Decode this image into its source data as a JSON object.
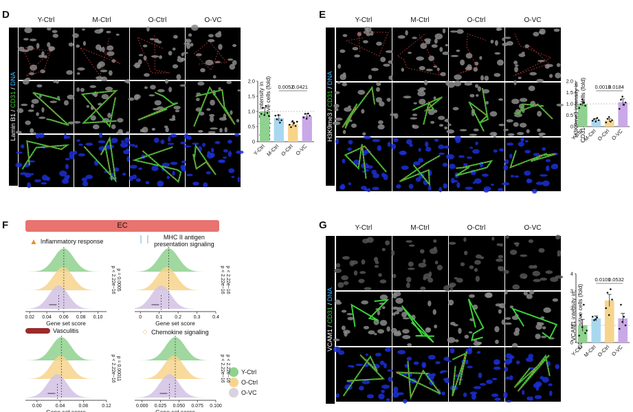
{
  "panels": {
    "D": {
      "letter": "D",
      "cols": [
        "Y-Ctrl",
        "M-Ctrl",
        "O-Ctrl",
        "O-VC"
      ],
      "row_label": {
        "a": "Lamin B1",
        "b": " / ",
        "c": "CD31",
        "d": " / ",
        "e": "DNA"
      },
      "ylabel_1": "Lamin B1 intensity in",
      "ylabel_2": "CD31-positive cells (fold)",
      "pvals": [
        "0.0052",
        "0.0421"
      ],
      "ticks": [
        "0",
        "0.5",
        "1.0",
        "1.5",
        "2.0"
      ],
      "cats": [
        "Y-Ctrl",
        "M-Ctrl",
        "O-Ctrl",
        "O-VC"
      ]
    },
    "E": {
      "letter": "E",
      "cols": [
        "Y-Ctrl",
        "M-Ctrl",
        "O-Ctrl",
        "O-VC"
      ],
      "row_label": {
        "a": "H3K9me3",
        "b": " / ",
        "c": "CD31",
        "d": " / ",
        "e": "DNA"
      },
      "ylabel_1": "H3K9me3 intensity in",
      "ylabel_2": "CD31-positive cells (fold)",
      "pvals": [
        "0.0013",
        "0.0184"
      ],
      "ticks": [
        "0",
        "0.5",
        "1.0",
        "1.5",
        "2.0"
      ],
      "cats": [
        "Y-Ctrl",
        "M-Ctrl",
        "O-Ctrl",
        "O-VC"
      ]
    },
    "F": {
      "letter": "F",
      "banner": "EC",
      "titles": [
        "Inflammatory response",
        "MHC II antigen",
        "presentation signaling",
        "Vasculitis",
        "Chemokine signaling"
      ],
      "pvals": [
        "p < 2.22e−16",
        "p = 0.0005",
        "p < 2.22e−16",
        "p < 2.22e−16",
        "p < 2.22e−16",
        "p = 0.00011",
        "p < 2.22e−16",
        "p < 2.22e−16"
      ],
      "xlabel": "Gene set score",
      "ticks1": [
        "0.02",
        "0.04",
        "0.06",
        "0.08",
        "0.10"
      ],
      "ticks2": [
        "0",
        "0.1",
        "0.2",
        "0.3",
        "0.4"
      ],
      "ticks3": [
        "0.00",
        "0.04",
        "0.08",
        "0.12"
      ],
      "ticks4": [
        "0.000",
        "0.025",
        "0.050",
        "0.075",
        "0.100"
      ],
      "legend": [
        "Y-Ctrl",
        "O-Ctrl",
        "O-VC"
      ]
    },
    "G": {
      "letter": "G",
      "cols": [
        "Y-Ctrl",
        "M-Ctrl",
        "O-Ctrl",
        "O-VC"
      ],
      "row_label": {
        "a": "VCAM1",
        "b": " / ",
        "c": "CD31",
        "d": " / ",
        "e": "DNA"
      },
      "ylabel_1": "VCAM1 intensity in",
      "ylabel_2": "CD31-positive cells (fold)",
      "pvals": [
        "0.0101",
        "0.0532"
      ],
      "ticks": [
        "0",
        "1",
        "2",
        "3",
        "4"
      ],
      "cats": [
        "Y-Ctrl",
        "M-Ctrl",
        "O-Ctrl",
        "O-VC"
      ]
    }
  },
  "colors": {
    "y": "#8fd18f",
    "m": "#a8d8f0",
    "o": "#f7d48c",
    "v": "#c9a8e8",
    "banner": "#e8736f",
    "green": "#3cd23c",
    "blue": "#1b2fd6",
    "red": "#c23b3b"
  },
  "chart_data": [
    {
      "type": "bar",
      "panel": "D",
      "categories": [
        "Y-Ctrl",
        "M-Ctrl",
        "O-Ctrl",
        "O-VC"
      ],
      "values": [
        1.0,
        0.78,
        0.58,
        0.85
      ],
      "errors": [
        0.12,
        0.1,
        0.07,
        0.08
      ],
      "ylim": [
        0,
        2.0
      ],
      "points": [
        [
          0.92,
          1.12,
          0.88,
          1.18,
          0.95,
          0.85
        ],
        [
          0.86,
          0.74,
          0.88,
          0.63,
          0.71
        ],
        [
          0.56,
          0.48,
          0.68,
          0.61,
          0.52,
          0.66
        ],
        [
          0.8,
          0.92,
          0.76,
          0.93,
          0.86
        ]
      ],
      "comparisons": [
        {
          "pair": [
            "M-Ctrl",
            "O-Ctrl"
          ],
          "p": "0.0052"
        },
        {
          "pair": [
            "O-Ctrl",
            "O-VC"
          ],
          "p": "0.0421"
        }
      ]
    },
    {
      "type": "bar",
      "panel": "E",
      "categories": [
        "Y-Ctrl",
        "M-Ctrl",
        "O-Ctrl",
        "O-VC"
      ],
      "values": [
        1.0,
        0.3,
        0.28,
        1.07
      ],
      "errors": [
        0.1,
        0.05,
        0.06,
        0.15
      ],
      "ylim": [
        0,
        2.0
      ],
      "points": [
        [
          0.82,
          0.98,
          1.2,
          1.06,
          0.92
        ],
        [
          0.26,
          0.33,
          0.22,
          0.38,
          0.28
        ],
        [
          0.18,
          0.34,
          0.42,
          0.22,
          0.28
        ],
        [
          0.78,
          1.18,
          1.32,
          0.96,
          1.06
        ]
      ],
      "comparisons": [
        {
          "pair": [
            "M-Ctrl",
            "O-Ctrl"
          ],
          "p": "0.0013"
        },
        {
          "pair": [
            "O-Ctrl",
            "O-VC"
          ],
          "p": "0.0184"
        }
      ]
    },
    {
      "type": "bar",
      "panel": "G",
      "categories": [
        "Y-Ctrl",
        "M-Ctrl",
        "O-Ctrl",
        "O-VC"
      ],
      "values": [
        1.0,
        1.4,
        2.45,
        1.4
      ],
      "errors": [
        0.35,
        0.15,
        0.35,
        0.3
      ],
      "ylim": [
        0,
        4
      ],
      "points": [
        [
          0.4,
          1.6,
          0.9,
          2.2,
          0.55,
          0.7
        ],
        [
          1.5,
          1.3,
          1.35,
          1.45
        ],
        [
          2.0,
          2.9,
          1.6,
          3.1,
          2.5
        ],
        [
          0.8,
          2.2,
          1.2,
          1.5,
          1.0
        ]
      ],
      "comparisons": [
        {
          "pair": [
            "M-Ctrl",
            "O-Ctrl"
          ],
          "p": "0.0101"
        },
        {
          "pair": [
            "O-Ctrl",
            "O-VC"
          ],
          "p": "0.0532"
        }
      ]
    },
    {
      "type": "area",
      "panel": "F",
      "series_names": [
        "Y-Ctrl",
        "O-Ctrl",
        "O-VC"
      ],
      "plots": [
        {
          "title": "Inflammatory response",
          "xlim": [
            0.015,
            0.11
          ],
          "means": [
            0.06,
            0.059,
            0.054
          ]
        },
        {
          "title": "MHC II antigen presentation signaling",
          "xlim": [
            -0.03,
            0.4
          ],
          "means": [
            0.15,
            0.14,
            0.11
          ]
        },
        {
          "title": "Vasculitis",
          "xlim": [
            -0.02,
            0.12
          ],
          "means": [
            0.042,
            0.041,
            0.035
          ]
        },
        {
          "title": "Chemokine signaling",
          "xlim": [
            -0.01,
            0.1
          ],
          "means": [
            0.045,
            0.043,
            0.037
          ]
        }
      ]
    }
  ]
}
